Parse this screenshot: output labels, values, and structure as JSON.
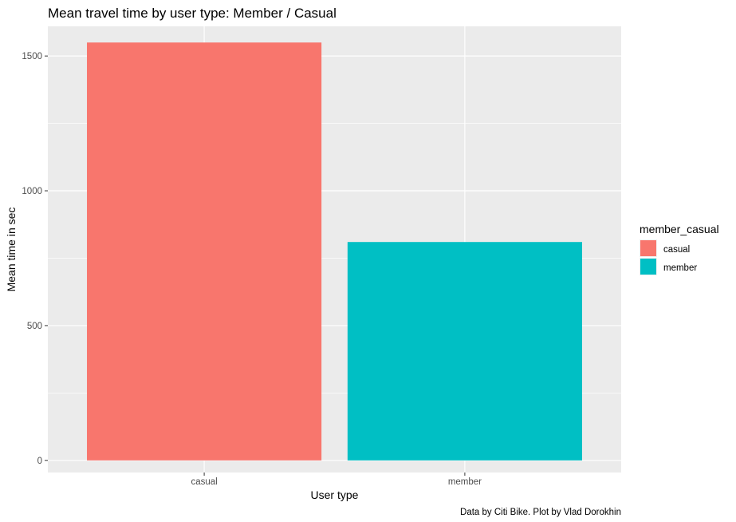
{
  "chart_data": {
    "type": "bar",
    "title": "Mean travel time by user type: Member / Casual",
    "xlabel": "User type",
    "ylabel": "Mean time in sec",
    "caption": "Data by Citi Bike. Plot by Vlad Dorokhin",
    "categories": [
      "casual",
      "member"
    ],
    "values": [
      1550,
      810
    ],
    "colors": [
      "#F8766D",
      "#00BFC4"
    ],
    "ylim": [
      -45,
      1610
    ],
    "yticks": [
      0,
      500,
      1000,
      1500
    ],
    "yminor": [
      250,
      750,
      1250
    ],
    "grid": true,
    "panel_background": "#EBEBEB",
    "grid_color": "#FFFFFF",
    "legend": {
      "title": "member_casual",
      "position": "right",
      "entries": [
        {
          "label": "casual",
          "color": "#F8766D"
        },
        {
          "label": "member",
          "color": "#00BFC4"
        }
      ]
    }
  }
}
